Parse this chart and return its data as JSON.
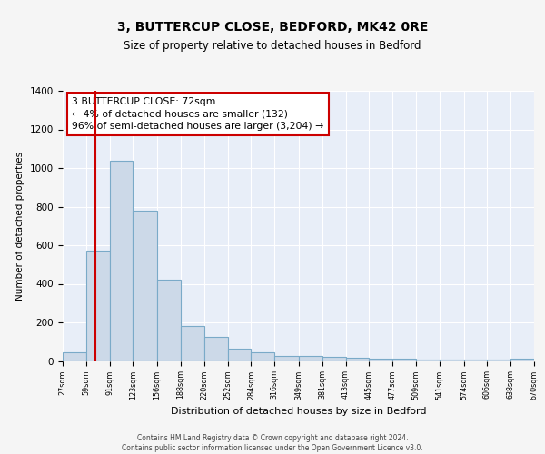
{
  "title": "3, BUTTERCUP CLOSE, BEDFORD, MK42 0RE",
  "subtitle": "Size of property relative to detached houses in Bedford",
  "xlabel": "Distribution of detached houses by size in Bedford",
  "ylabel": "Number of detached properties",
  "bar_color": "#ccd9e8",
  "bar_edge_color": "#7aaac8",
  "background_color": "#e8eef8",
  "grid_color": "#ffffff",
  "red_line_x": 72,
  "annotation_text": "3 BUTTERCUP CLOSE: 72sqm\n← 4% of detached houses are smaller (132)\n96% of semi-detached houses are larger (3,204) →",
  "annotation_box_color": "#ffffff",
  "annotation_box_edge_color": "#cc0000",
  "footer_text": "Contains HM Land Registry data © Crown copyright and database right 2024.\nContains public sector information licensed under the Open Government Licence v3.0.",
  "bin_edges": [
    27,
    59,
    91,
    123,
    156,
    188,
    220,
    252,
    284,
    316,
    349,
    381,
    413,
    445,
    477,
    509,
    541,
    574,
    606,
    638,
    670
  ],
  "counts": [
    47,
    571,
    1040,
    781,
    420,
    181,
    125,
    62,
    47,
    25,
    25,
    20,
    15,
    10,
    10,
    8,
    8,
    5,
    5,
    11
  ],
  "ylim": [
    0,
    1400
  ],
  "yticks": [
    0,
    200,
    400,
    600,
    800,
    1000,
    1200,
    1400
  ]
}
